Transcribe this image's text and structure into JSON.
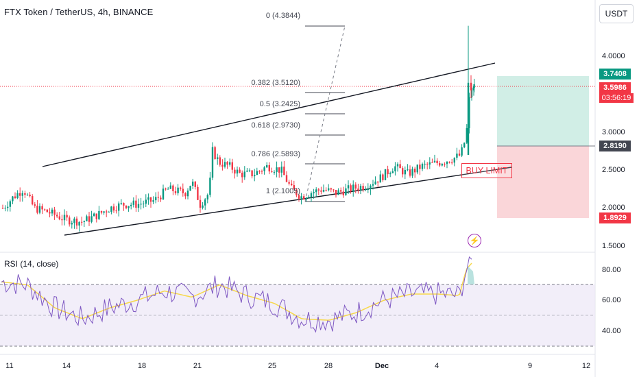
{
  "header": {
    "title": "FTX Token / TetherUS, 4h, BINANCE",
    "currency_button": "USDT"
  },
  "price_axis": {
    "labels": [
      "4.0000",
      "3.0000",
      "2.5000",
      "2.0000",
      "1.5000"
    ],
    "tags": {
      "target": "3.7408",
      "current": "3.5986",
      "countdown": "03:56:19",
      "entry": "2.8190",
      "stop": "1.8929"
    }
  },
  "rsi": {
    "label": "RSI (14, close)",
    "axis_labels": [
      "80.00",
      "60.00",
      "40.00"
    ]
  },
  "time_axis": {
    "labels": [
      "11",
      "14",
      "18",
      "21",
      "25",
      "28",
      "Dec",
      "4",
      "9",
      "12"
    ]
  },
  "fibonacci": {
    "levels": [
      "0 (4.3844)",
      "0.382 (3.5120)",
      "0.5 (3.2425)",
      "0.618 (2.9730)",
      "0.786 (2.5893)",
      "1 (2.1005)"
    ]
  },
  "annotations": {
    "order_label": "BUY LIMIT",
    "alert_icon": "lightning-bolt-icon"
  },
  "colors": {
    "bull": "#089981",
    "bear": "#f23645",
    "rsi_line": "#7e57c2",
    "rsi_ma": "#f7d84a",
    "target_zone": "#d1eee6",
    "stop_zone": "#fad6d9",
    "current_price_line": "#f23645"
  }
}
